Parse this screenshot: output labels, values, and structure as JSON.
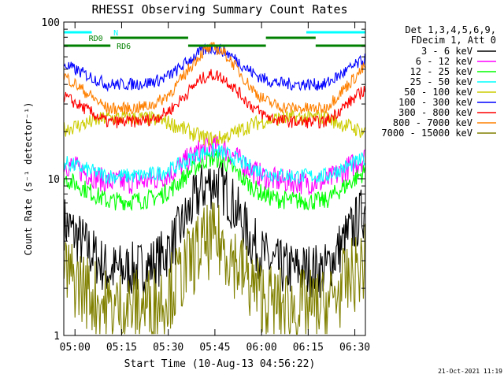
{
  "chart_data": {
    "type": "line",
    "title": "RHESSI Observing Summary Count Rates",
    "xlabel": "Start Time (10-Aug-13 04:56:22)",
    "ylabel": "Count Rate (s⁻¹ detector⁻¹)",
    "y_scale": "log",
    "ylim": [
      1,
      100
    ],
    "xlim_minutes": [
      0,
      97
    ],
    "x_ticks": [
      {
        "label": "05:00",
        "t": 3.6
      },
      {
        "label": "05:15",
        "t": 18.6
      },
      {
        "label": "05:30",
        "t": 33.6
      },
      {
        "label": "05:45",
        "t": 48.6
      },
      {
        "label": "06:00",
        "t": 63.6
      },
      {
        "label": "06:15",
        "t": 78.6
      },
      {
        "label": "06:30",
        "t": 93.6
      }
    ],
    "y_ticks": [
      {
        "label": "1",
        "value": 1
      },
      {
        "label": "10",
        "value": 10
      },
      {
        "label": "100",
        "value": 100
      }
    ],
    "legend_header": [
      "Det 1,3,4,5,6,9,",
      "FDecim 1, Att 0"
    ],
    "series": [
      {
        "name": "3 - 6 keV",
        "color": "#000000",
        "base": 2.6,
        "peak": 9.5,
        "jitter": 0.18
      },
      {
        "name": "6 - 12 keV",
        "color": "#ff00ff",
        "base": 9.5,
        "peak": 16,
        "jitter": 0.08
      },
      {
        "name": "12 - 25 keV",
        "color": "#00ff00",
        "base": 7.2,
        "peak": 13.5,
        "jitter": 0.06
      },
      {
        "name": "25 - 50 keV",
        "color": "#00ffff",
        "base": 10.4,
        "peak": 15,
        "jitter": 0.05
      },
      {
        "name": "50 - 100 keV",
        "color": "#cccc00",
        "base": 24.5,
        "peak": 18,
        "jitter": 0.05
      },
      {
        "name": "100 - 300 keV",
        "color": "#0000ff",
        "base": 40,
        "peak": 68,
        "jitter": 0.04
      },
      {
        "name": "300 - 800 keV",
        "color": "#ff0000",
        "base": 23,
        "peak": 46,
        "jitter": 0.04
      },
      {
        "name": "800 - 7000 keV",
        "color": "#ff8000",
        "base": 28,
        "peak": 68,
        "jitter": 0.04
      },
      {
        "name": "7000 - 15000 keV",
        "color": "#808000",
        "base": 1.5,
        "peak": 4,
        "jitter": 0.25
      }
    ],
    "annotations": [
      {
        "label": "N",
        "color": "#00ffff"
      },
      {
        "label": "RD0",
        "color": "#008000"
      },
      {
        "label": "RD6",
        "color": "#008000"
      }
    ],
    "gaps_minutes": [
      [
        9,
        18
      ],
      [
        39,
        63
      ],
      [
        83,
        93
      ]
    ]
  },
  "footer": {
    "timestamp": "21-Oct-2021 11:19"
  },
  "colors": {
    "n_bar": "#00ffff",
    "rd_bar": "#008000"
  }
}
